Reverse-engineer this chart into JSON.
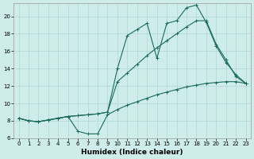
{
  "xlabel": "Humidex (Indice chaleur)",
  "background_color": "#ceecea",
  "grid_color": "#add8d4",
  "line_color": "#1a6b5a",
  "xlim": [
    -0.5,
    23.5
  ],
  "ylim": [
    6.0,
    21.5
  ],
  "xticks": [
    0,
    1,
    2,
    3,
    4,
    5,
    6,
    7,
    8,
    9,
    10,
    11,
    12,
    13,
    14,
    15,
    16,
    17,
    18,
    19,
    20,
    21,
    22,
    23
  ],
  "yticks": [
    6,
    8,
    10,
    12,
    14,
    16,
    18,
    20
  ],
  "line1_x": [
    0,
    1,
    2,
    3,
    4,
    5,
    6,
    7,
    8,
    9,
    10,
    11,
    12,
    13,
    14,
    15,
    16,
    17,
    18,
    19,
    20,
    21,
    22,
    23
  ],
  "line1_y": [
    8.3,
    8.0,
    7.9,
    8.1,
    8.3,
    8.5,
    6.8,
    6.5,
    6.5,
    8.7,
    9.3,
    9.8,
    10.2,
    10.6,
    11.0,
    11.3,
    11.6,
    11.9,
    12.1,
    12.3,
    12.4,
    12.5,
    12.5,
    12.3
  ],
  "line2_x": [
    0,
    1,
    2,
    3,
    4,
    5,
    6,
    7,
    8,
    9,
    10,
    11,
    12,
    13,
    14,
    15,
    16,
    17,
    18,
    19,
    20,
    21,
    22,
    23
  ],
  "line2_y": [
    8.3,
    8.0,
    7.9,
    8.1,
    8.3,
    8.5,
    8.6,
    8.7,
    8.8,
    9.0,
    14.0,
    17.8,
    18.5,
    19.2,
    15.2,
    19.2,
    19.5,
    21.0,
    21.3,
    19.3,
    16.6,
    14.7,
    13.3,
    12.3
  ],
  "line3_x": [
    0,
    1,
    2,
    3,
    4,
    5,
    6,
    7,
    8,
    9,
    10,
    11,
    12,
    13,
    14,
    15,
    16,
    17,
    18,
    19,
    20,
    21,
    22,
    23
  ],
  "line3_y": [
    8.3,
    8.0,
    7.9,
    8.1,
    8.3,
    8.5,
    8.6,
    8.7,
    8.8,
    9.0,
    12.5,
    13.5,
    14.5,
    15.5,
    16.4,
    17.2,
    18.0,
    18.8,
    19.5,
    19.5,
    16.8,
    15.0,
    13.1,
    12.3
  ],
  "xlabel_fontsize": 6.5,
  "tick_fontsize": 5.0,
  "linewidth": 0.8,
  "markersize": 2.5
}
